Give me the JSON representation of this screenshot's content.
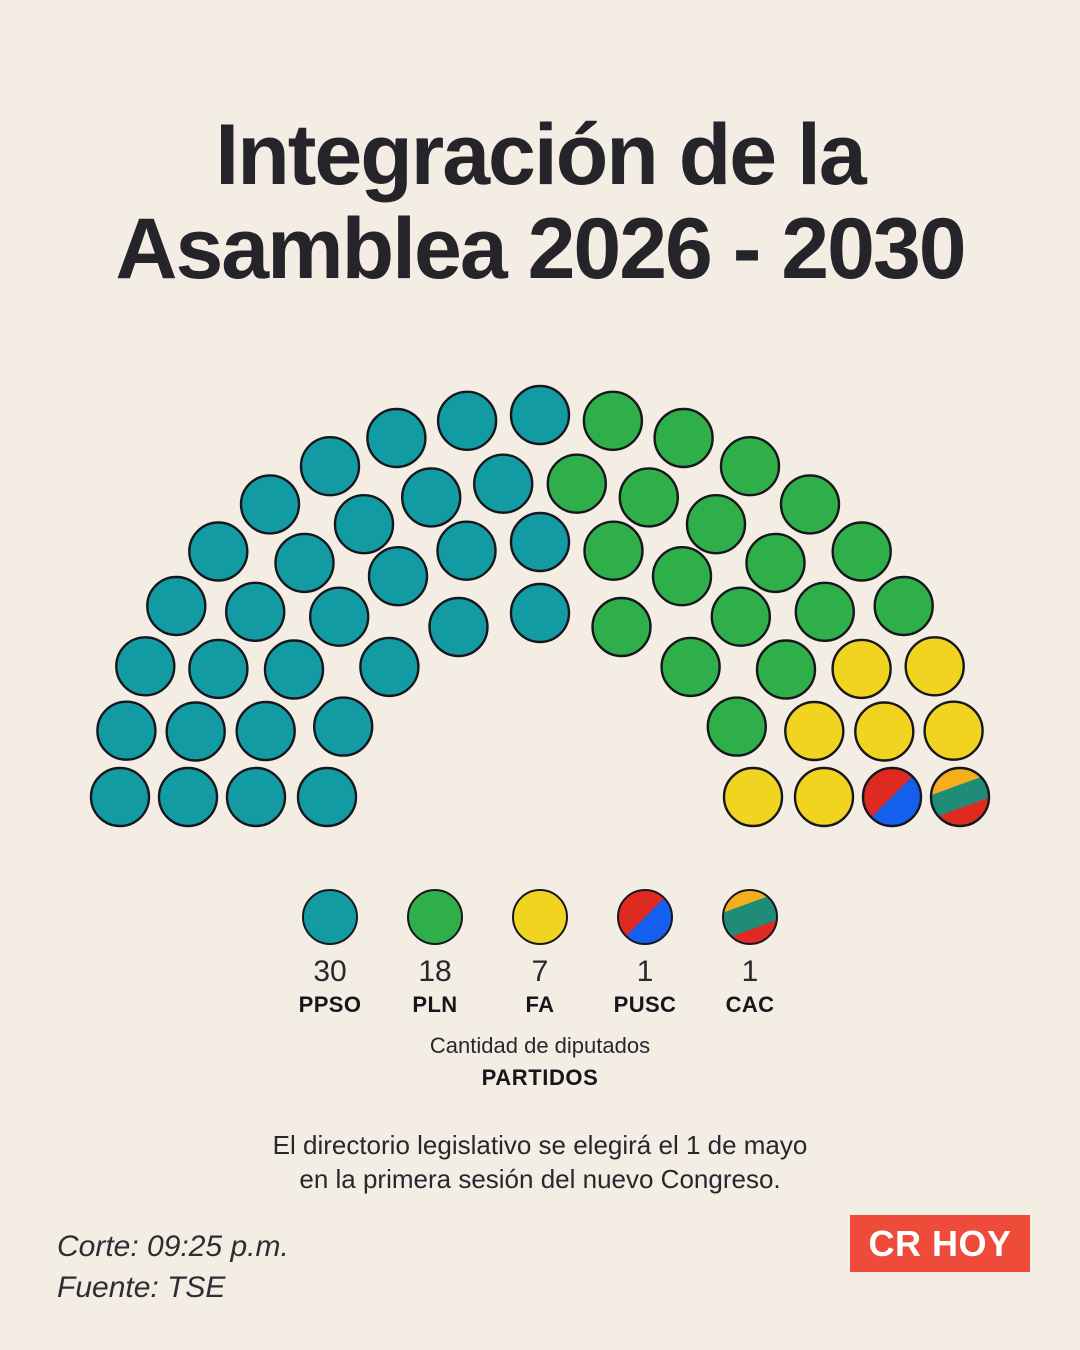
{
  "title": {
    "line1": "Integración de la",
    "line2": "Asamblea 2026 - 2030"
  },
  "chart_data": {
    "type": "parliament",
    "total_seats": 57,
    "seat_shape": "circle",
    "seat_outline_color": "#17161C",
    "parties": [
      {
        "code": "PPSO",
        "seats": 30,
        "fill": {
          "type": "solid",
          "color": "#139BA4"
        }
      },
      {
        "code": "PLN",
        "seats": 18,
        "fill": {
          "type": "solid",
          "color": "#2FAF4A"
        }
      },
      {
        "code": "FA",
        "seats": 7,
        "fill": {
          "type": "solid",
          "color": "#F1D420"
        }
      },
      {
        "code": "PUSC",
        "seats": 1,
        "fill": {
          "type": "gradient",
          "angle": 135,
          "stops": [
            {
              "color": "#DE2A20",
              "at": 0
            },
            {
              "color": "#DE2A20",
              "at": 50
            },
            {
              "color": "#145FEE",
              "at": 50
            },
            {
              "color": "#145FEE",
              "at": 100
            }
          ]
        }
      },
      {
        "code": "CAC",
        "seats": 1,
        "fill": {
          "type": "gradient",
          "angle": 160,
          "stops": [
            {
              "color": "#F5AE1C",
              "at": 0
            },
            {
              "color": "#F5AE1C",
              "at": 30
            },
            {
              "color": "#1E8C76",
              "at": 30
            },
            {
              "color": "#1E8C76",
              "at": 68
            },
            {
              "color": "#DE2A20",
              "at": 68
            },
            {
              "color": "#DE2A20",
              "at": 100
            }
          ]
        }
      }
    ],
    "rows": [
      {
        "seats": 9,
        "segments": [
          {
            "party": "PPSO",
            "count": 5
          },
          {
            "party": "PLN",
            "count": 3
          },
          {
            "party": "FA",
            "count": 1
          }
        ]
      },
      {
        "seats": 13,
        "segments": [
          {
            "party": "PPSO",
            "count": 7
          },
          {
            "party": "PLN",
            "count": 4
          },
          {
            "party": "FA",
            "count": 2
          }
        ]
      },
      {
        "seats": 16,
        "segments": [
          {
            "party": "PPSO",
            "count": 8
          },
          {
            "party": "PLN",
            "count": 5
          },
          {
            "party": "FA",
            "count": 2
          },
          {
            "party": "PUSC",
            "count": 1
          }
        ]
      },
      {
        "seats": 19,
        "segments": [
          {
            "party": "PPSO",
            "count": 10
          },
          {
            "party": "PLN",
            "count": 6
          },
          {
            "party": "FA",
            "count": 2
          },
          {
            "party": "CAC",
            "count": 1
          }
        ]
      }
    ],
    "legend_position": "bottom",
    "xlabel": "",
    "ylabel": ""
  },
  "caption": {
    "line1": "Cantidad de diputados",
    "line2": "PARTIDOS"
  },
  "note": {
    "line1": "El directorio legislativo se elegirá el 1 de mayo",
    "line2": "en la primera sesión del nuevo Congreso."
  },
  "footer": {
    "cutoff": "Corte: 09:25 p.m.",
    "source": "Fuente: TSE",
    "brand": "CR HOY"
  },
  "colors": {
    "background": "#F3EDE4",
    "ink": "#26242B",
    "brand_red": "#EE4B3B"
  }
}
